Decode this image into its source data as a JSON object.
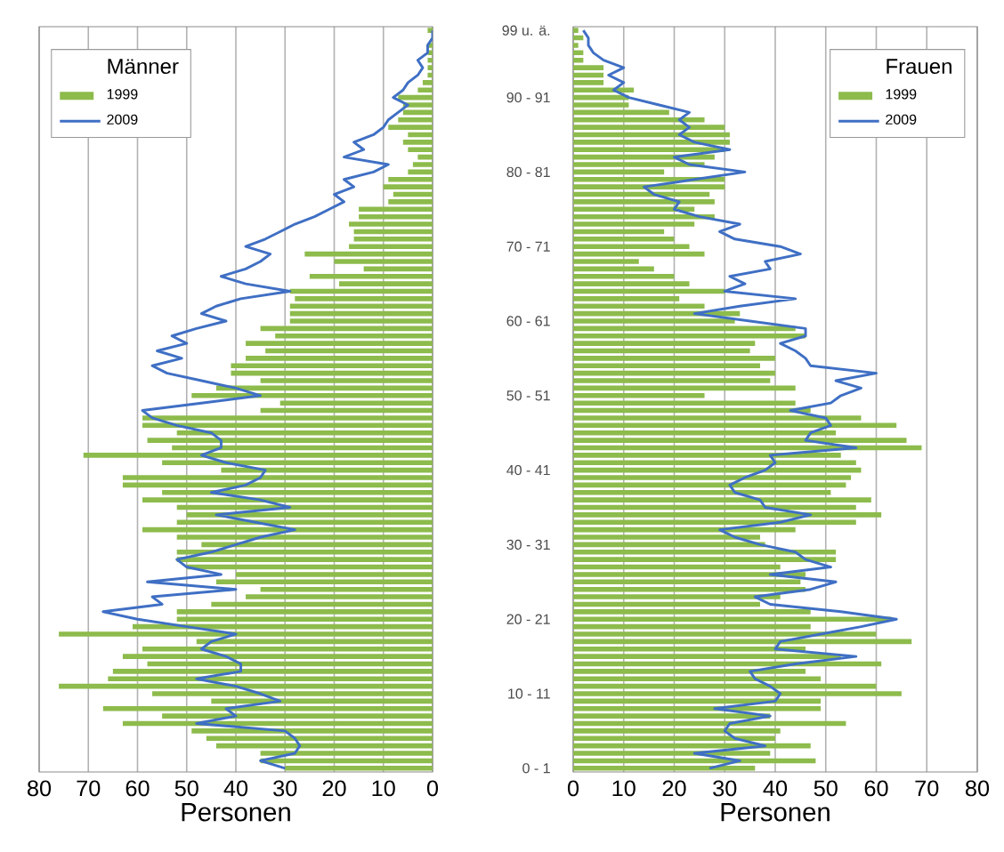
{
  "chart_data": [
    {
      "type": "bar",
      "orientation": "horizontal",
      "legend_title": "Männer",
      "xlabel": "Personen",
      "xlim": [
        80,
        0
      ],
      "xticks": [
        0,
        10,
        20,
        30,
        40,
        50,
        60,
        70,
        80
      ],
      "grid": "x",
      "legend": "top left",
      "categories": [
        null,
        null,
        null,
        null,
        null,
        null,
        null,
        null,
        null,
        null,
        null,
        null,
        null,
        null,
        null,
        null,
        null,
        null,
        null,
        null,
        null,
        null,
        null,
        null,
        null,
        null,
        null,
        null,
        null,
        null,
        null,
        null,
        null,
        null,
        null,
        null,
        null,
        null,
        null,
        null,
        null,
        null,
        null,
        null,
        null,
        null,
        null,
        null,
        null,
        null,
        null,
        null,
        null,
        null,
        null,
        null,
        null,
        null,
        null,
        null,
        null,
        null,
        null,
        null,
        null,
        null,
        null,
        null,
        null,
        null,
        null,
        null,
        null,
        null,
        null,
        null,
        null,
        null,
        null,
        null,
        null,
        null,
        null,
        null,
        null,
        null,
        null,
        null,
        null,
        null,
        null,
        null,
        null,
        null,
        null,
        null,
        null,
        null,
        null,
        null
      ],
      "series": [
        {
          "name": "1999",
          "type": "bar",
          "color": "#8dbb4c",
          "values": [
            1,
            0,
            1,
            1,
            1,
            1,
            1,
            2,
            3,
            7,
            6,
            6,
            7,
            9,
            5,
            6,
            5,
            3,
            4,
            5,
            9,
            10,
            8,
            9,
            15,
            15,
            17,
            16,
            16,
            17,
            26,
            20,
            14,
            25,
            19,
            29,
            28,
            29,
            29,
            29,
            35,
            32,
            38,
            34,
            38,
            41,
            41,
            35,
            44,
            49,
            31,
            35,
            59,
            59,
            52,
            58,
            53,
            71,
            55,
            43,
            63,
            63,
            55,
            59,
            52,
            50,
            52,
            59,
            52,
            47,
            52,
            52,
            50,
            40,
            44,
            35,
            38,
            45,
            52,
            52,
            61,
            76,
            48,
            59,
            63,
            58,
            65,
            66,
            76,
            57,
            45,
            67,
            55,
            63,
            49,
            46,
            44,
            35,
            35,
            30
          ]
        },
        {
          "name": "2009",
          "type": "line",
          "color": "#3f6fc4",
          "values": [
            0,
            0,
            1,
            1,
            3,
            2,
            3,
            5,
            6,
            8,
            5,
            7,
            9,
            10,
            12,
            16,
            14,
            18,
            9,
            12,
            18,
            16,
            20,
            18,
            21,
            24,
            28,
            31,
            34,
            38,
            33,
            35,
            38,
            43,
            38,
            29,
            39,
            44,
            47,
            42,
            48,
            53,
            50,
            56,
            51,
            57,
            54,
            47,
            40,
            35,
            47,
            59,
            57,
            52,
            45,
            43,
            43,
            47,
            42,
            34,
            35,
            38,
            45,
            35,
            29,
            44,
            36,
            28,
            35,
            40,
            45,
            52,
            50,
            43,
            58,
            40,
            57,
            55,
            67,
            60,
            50,
            40,
            45,
            47,
            42,
            39,
            39,
            48,
            40,
            35,
            31,
            42,
            40,
            48,
            30,
            28,
            27,
            28,
            35,
            30
          ]
        }
      ]
    },
    {
      "type": "bar",
      "orientation": "horizontal",
      "legend_title": "Frauen",
      "xlabel": "Personen",
      "xlim": [
        0,
        80
      ],
      "xticks": [
        0,
        10,
        20,
        30,
        40,
        50,
        60,
        70,
        80
      ],
      "grid": "x",
      "legend": "top right",
      "categories": [
        "99 u. ä.",
        null,
        null,
        null,
        null,
        null,
        null,
        null,
        null,
        "90 - 91",
        null,
        null,
        null,
        null,
        null,
        null,
        null,
        null,
        null,
        "80 - 81",
        null,
        null,
        null,
        null,
        null,
        null,
        null,
        null,
        null,
        "70 - 71",
        null,
        null,
        null,
        null,
        null,
        null,
        null,
        null,
        null,
        "60 - 61",
        null,
        null,
        null,
        null,
        null,
        null,
        null,
        null,
        null,
        "50 - 51",
        null,
        null,
        null,
        null,
        null,
        null,
        null,
        null,
        null,
        "40 - 41",
        null,
        null,
        null,
        null,
        null,
        null,
        null,
        null,
        null,
        "30 - 31",
        null,
        null,
        null,
        null,
        null,
        null,
        null,
        null,
        null,
        "20 - 21",
        null,
        null,
        null,
        null,
        null,
        null,
        null,
        null,
        null,
        "10 - 11",
        null,
        null,
        null,
        null,
        null,
        null,
        null,
        null,
        null,
        "0 - 1"
      ],
      "series": [
        {
          "name": "1999",
          "type": "bar",
          "color": "#8dbb4c",
          "values": [
            1,
            2,
            1,
            2,
            2,
            6,
            6,
            6,
            12,
            11,
            11,
            19,
            26,
            30,
            31,
            31,
            30,
            28,
            26,
            18,
            30,
            30,
            27,
            28,
            24,
            28,
            24,
            18,
            20,
            23,
            26,
            13,
            16,
            20,
            23,
            30,
            21,
            26,
            33,
            32,
            44,
            46,
            36,
            35,
            40,
            37,
            40,
            39,
            44,
            26,
            44,
            47,
            57,
            64,
            52,
            66,
            69,
            53,
            56,
            57,
            55,
            54,
            51,
            59,
            56,
            61,
            56,
            44,
            37,
            38,
            52,
            52,
            41,
            46,
            45,
            46,
            41,
            37,
            47,
            63,
            47,
            60,
            67,
            46,
            53,
            61,
            46,
            49,
            60,
            65,
            49,
            49,
            39,
            54,
            41,
            40,
            47,
            39,
            48,
            36
          ]
        },
        {
          "name": "2009",
          "type": "line",
          "color": "#3f6fc4",
          "values": [
            2,
            3,
            3,
            4,
            6,
            10,
            7,
            10,
            8,
            11,
            17,
            23,
            21,
            23,
            21,
            24,
            31,
            20,
            23,
            34,
            24,
            14,
            16,
            21,
            20,
            25,
            33,
            29,
            32,
            41,
            45,
            38,
            39,
            31,
            34,
            30,
            44,
            33,
            24,
            35,
            46,
            46,
            41,
            44,
            46,
            47,
            60,
            52,
            57,
            53,
            51,
            43,
            50,
            51,
            47,
            46,
            56,
            39,
            40,
            38,
            34,
            31,
            32,
            37,
            38,
            47,
            41,
            29,
            32,
            37,
            44,
            46,
            51,
            39,
            52,
            47,
            36,
            39,
            53,
            64,
            57,
            49,
            41,
            40,
            56,
            44,
            35,
            36,
            39,
            41,
            40,
            28,
            39,
            31,
            30,
            32,
            38,
            24,
            33,
            27
          ]
        }
      ]
    }
  ]
}
